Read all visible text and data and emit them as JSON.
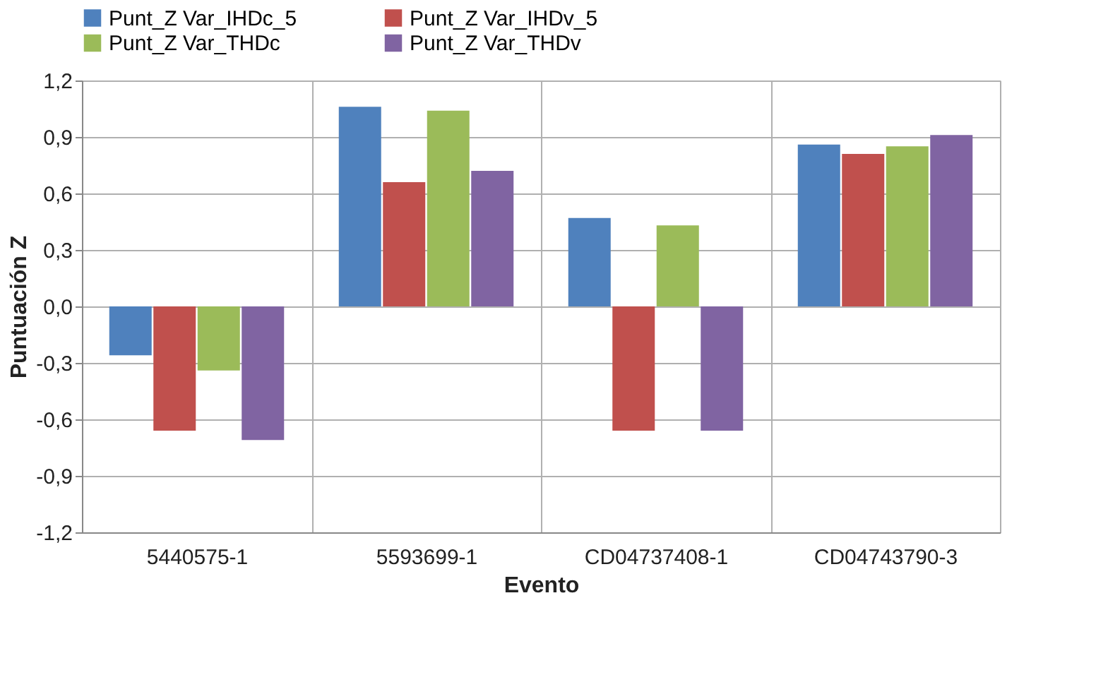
{
  "chart_data": {
    "type": "bar",
    "xlabel": "Evento",
    "ylabel": "Puntuación Z",
    "categories": [
      "5440575-1",
      "5593699-1",
      "CD04737408-1",
      "CD04743790-3"
    ],
    "series": [
      {
        "name": "Punt_Z Var_IHDc_5",
        "color": "#4f81bd",
        "values": [
          -0.26,
          1.06,
          0.47,
          0.86
        ]
      },
      {
        "name": "Punt_Z Var_IHDv_5",
        "color": "#c0504d",
        "values": [
          -0.66,
          0.66,
          -0.66,
          0.81
        ]
      },
      {
        "name": "Punt_Z Var_THDc",
        "color": "#9bbb59",
        "values": [
          -0.34,
          1.04,
          0.43,
          0.85
        ]
      },
      {
        "name": "Punt_Z Var_THDv",
        "color": "#8064a2",
        "values": [
          -0.71,
          0.72,
          -0.66,
          0.91
        ]
      }
    ],
    "ylim": [
      -1.2,
      1.2
    ],
    "yticks": [
      {
        "value": -1.2,
        "label": "-1,2"
      },
      {
        "value": -0.9,
        "label": "-0,9"
      },
      {
        "value": -0.6,
        "label": "-0,6"
      },
      {
        "value": -0.3,
        "label": "-0,3"
      },
      {
        "value": 0,
        "label": "0,0"
      },
      {
        "value": 0.3,
        "label": "0,3"
      },
      {
        "value": 0.6,
        "label": "0,6"
      },
      {
        "value": 0.9,
        "label": "0,9"
      },
      {
        "value": 1.2,
        "label": "1,2"
      }
    ],
    "grid": true,
    "legend": "top"
  }
}
